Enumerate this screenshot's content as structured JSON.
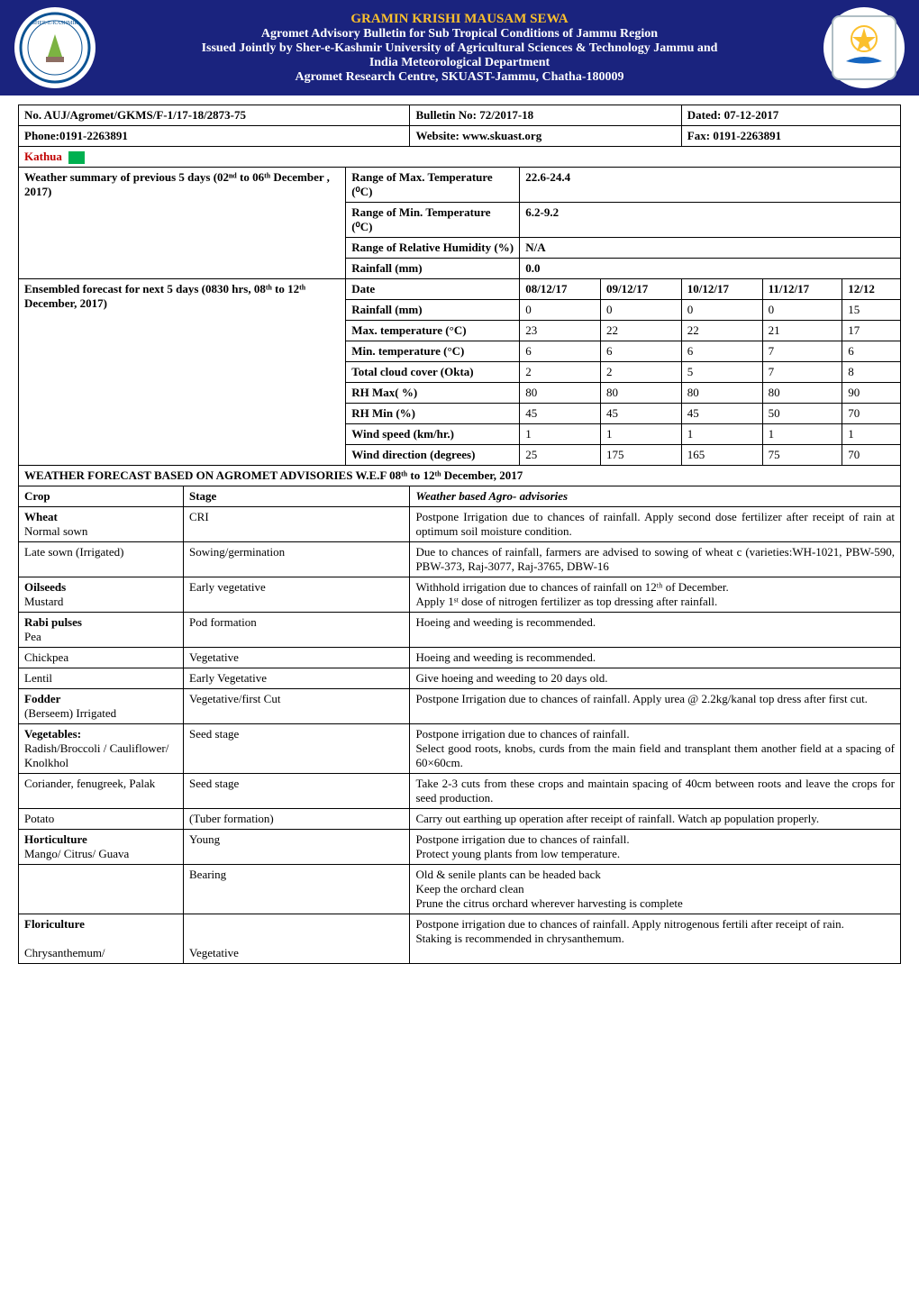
{
  "header": {
    "line1": "GRAMIN KRISHI MAUSAM SEWA",
    "line2": "Agromet Advisory Bulletin for Sub Tropical Conditions of Jammu Region",
    "line3": "Issued Jointly by Sher-e-Kashmir University of Agricultural Sciences & Technology Jammu and",
    "line4": "India Meteorological Department",
    "line5": "Agromet Research Centre, SKUAST-Jammu, Chatha-180009",
    "logo_left_alt": "SKUAST Logo",
    "logo_right_alt": "IMD Logo"
  },
  "meta": {
    "ref_no": "No. AUJ/Agromet/GKMS/F-1/17-18/2873-75",
    "bulletin_no_label": "Bulletin No: 72/2017-18",
    "dated": "Dated: 07-12-2017",
    "phone": "Phone:0191-2263891",
    "website": "Website: www.skuast.org",
    "fax": "Fax: 0191-2263891"
  },
  "district": "Kathua",
  "summary": {
    "title": "Weather summary of previous 5 days (02ⁿᵈ to 06ᵗʰ December  , 2017)",
    "rows": [
      {
        "label": "Range of Max. Temperature (⁰C)",
        "value": "22.6-24.4"
      },
      {
        "label": "Range of Min. Temperature (⁰C)",
        "value": "6.2-9.2"
      },
      {
        "label": "Range of Relative Humidity (%)",
        "value": "N/A"
      },
      {
        "label": "Rainfall (mm)",
        "value": "0.0"
      }
    ]
  },
  "forecast": {
    "title": "Ensembled  forecast for next 5 days (0830 hrs, 08ᵗʰ to 12ᵗʰ  December, 2017)",
    "dates": [
      "08/12/17",
      "09/12/17",
      "10/12/17",
      "11/12/17",
      "12/12"
    ],
    "rows": [
      {
        "label": "Rainfall (mm)",
        "vals": [
          "0",
          "0",
          "0",
          "0",
          "15"
        ]
      },
      {
        "label": "Max. temperature (°C)",
        "vals": [
          "23",
          "22",
          "22",
          "21",
          "17"
        ]
      },
      {
        "label": "Min. temperature (°C)",
        "vals": [
          "6",
          "6",
          "6",
          "7",
          "6"
        ]
      },
      {
        "label": "Total cloud cover (Okta)",
        "vals": [
          "2",
          "2",
          "5",
          "7",
          "8"
        ]
      },
      {
        "label": "RH Max( %)",
        "vals": [
          "80",
          "80",
          "80",
          "80",
          "90"
        ]
      },
      {
        "label": "RH Min (%)",
        "vals": [
          "45",
          "45",
          "45",
          "50",
          "70"
        ]
      },
      {
        "label": "Wind speed (km/hr.)",
        "vals": [
          "1",
          "1",
          "1",
          "1",
          "1"
        ]
      },
      {
        "label": "Wind direction (degrees)",
        "vals": [
          "25",
          "175",
          "165",
          "75",
          "70"
        ]
      }
    ]
  },
  "advisory_header": "WEATHER FORECAST BASED ON AGROMET ADVISORIES W.E.F  08ᵗʰ   to 12ᵗʰ December, 2017",
  "advisory_cols": {
    "crop": "Crop",
    "stage": "Stage",
    "advice": "Weather based Agro- advisories"
  },
  "advisories": [
    {
      "crop": "Wheat\nNormal sown",
      "crop_bold": "Wheat",
      "stage": "CRI",
      "advice": "Postpone Irrigation due to chances of rainfall. Apply second dose fertilizer after receipt of rain at optimum soil moisture condition."
    },
    {
      "crop": "Late sown (Irrigated)",
      "stage": "Sowing/germination",
      "advice": "Due to chances of rainfall, farmers are advised to sowing of wheat c (varieties:WH-1021, PBW-590, PBW-373, Raj-3077, Raj-3765, DBW-16"
    },
    {
      "crop": "Oilseeds\nMustard",
      "crop_bold": "Oilseeds",
      "stage": "Early vegetative",
      "advice": "Withhold irrigation due to chances of rainfall on 12ᵗʰ of December.\nApply 1ˢᵗ dose of nitrogen fertilizer as top dressing after rainfall."
    },
    {
      "crop": "Rabi pulses\nPea",
      "crop_bold": "Rabi pulses",
      "stage": "Pod formation",
      "advice": "Hoeing and weeding is recommended."
    },
    {
      "crop": "Chickpea",
      "stage": "Vegetative",
      "advice": "Hoeing and weeding is recommended."
    },
    {
      "crop": "Lentil",
      "stage": "Early Vegetative",
      "advice": "Give hoeing and weeding to 20 days old."
    },
    {
      "crop": "Fodder (Berseem) Irrigated",
      "crop_bold": "Fodder",
      "stage": "Vegetative/first Cut",
      "advice": "Postpone Irrigation due to chances of rainfall. Apply urea @ 2.2kg/kanal top dress after first cut."
    },
    {
      "crop": "Vegetables:\n Radish/Broccoli / Cauliflower/ Knolkhol",
      "crop_bold": "Vegetables:",
      "stage": "Seed stage",
      "advice": "Postpone irrigation due to chances of rainfall.\nSelect good roots, knobs, curds from the main field and transplant them another field at a spacing of 60×60cm."
    },
    {
      "crop": "Coriander, fenugreek, Palak",
      "stage": "Seed stage",
      "advice": "Take 2-3 cuts from these crops and maintain spacing of 40cm between roots and leave the crops for seed production."
    },
    {
      "crop": "Potato",
      "stage": "(Tuber formation)",
      "advice": "Carry out earthing up operation after receipt of rainfall. Watch ap population properly."
    },
    {
      "crop": "Horticulture\nMango/ Citrus/ Guava",
      "crop_bold": "Horticulture",
      "stage": "Young",
      "advice": "Postpone irrigation due to chances of rainfall.\nProtect young plants from low temperature."
    },
    {
      "crop": "",
      "stage": "Bearing",
      "advice": "Old & senile plants can be headed back\nKeep the orchard clean\nPrune  the citrus orchard wherever harvesting is complete"
    },
    {
      "crop": "Floriculture\n\nChrysanthemum/",
      "crop_bold": "Floriculture",
      "stage": "\n\nVegetative",
      "advice": "Postpone irrigation due to chances of rainfall. Apply nitrogenous fertili after receipt of rain.\nStaking is recommended in chrysanthemum."
    }
  ],
  "colors": {
    "header_bg": "#1a237e",
    "accent_yellow": "#fbc02d",
    "district_red": "#c00000",
    "green_box": "#00b050"
  }
}
